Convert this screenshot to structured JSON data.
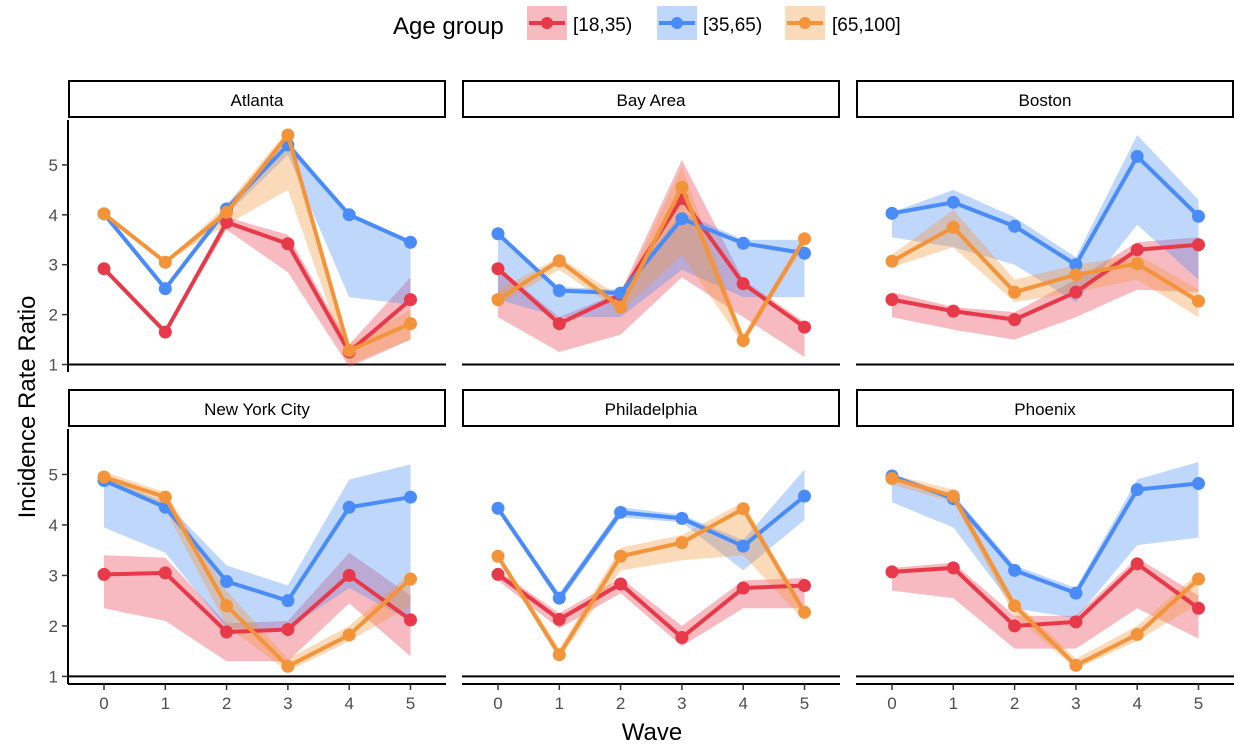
{
  "chart_data": {
    "type": "line",
    "legend": {
      "title": "Age group",
      "placement": "top",
      "entries": [
        "[18,35)",
        "[35,65)",
        "[65,100]"
      ]
    },
    "colors": {
      "[18,35)": "#E8394A",
      "[35,65)": "#4A8CF7",
      "[65,100]": "#F4943A"
    },
    "xlabel": "Wave",
    "ylabel": "Incidence Rate Ratio",
    "x": [
      0,
      1,
      2,
      3,
      4,
      5
    ],
    "x_ticks": [
      "0",
      "1",
      "2",
      "3",
      "4",
      "5"
    ],
    "y_ticks": [
      "1",
      "2",
      "3",
      "4",
      "5"
    ],
    "ylim": [
      0.85,
      5.9
    ],
    "grid": false,
    "panels": [
      {
        "title": "Atlanta",
        "series": [
          {
            "name": "[18,35)",
            "values": [
              2.92,
              1.65,
              3.85,
              3.42,
              1.25,
              2.3
            ],
            "lower": [
              2.92,
              1.65,
              3.7,
              2.85,
              0.95,
              1.5
            ],
            "upper": [
              2.92,
              1.65,
              3.95,
              3.6,
              1.4,
              2.75
            ]
          },
          {
            "name": "[35,65)",
            "values": [
              4.02,
              2.52,
              4.12,
              5.4,
              4.0,
              3.45
            ],
            "lower": [
              4.02,
              2.52,
              4.0,
              5.2,
              2.35,
              2.2
            ],
            "upper": [
              4.02,
              2.52,
              4.2,
              5.5,
              4.0,
              3.45
            ]
          },
          {
            "name": "[65,100]",
            "values": [
              4.02,
              3.05,
              4.05,
              5.6,
              1.28,
              1.82
            ],
            "lower": [
              4.02,
              3.05,
              3.8,
              4.5,
              1.0,
              1.5
            ],
            "upper": [
              4.02,
              3.05,
              4.2,
              5.7,
              1.4,
              2.1
            ]
          }
        ]
      },
      {
        "title": "Bay Area",
        "series": [
          {
            "name": "[18,35)",
            "values": [
              2.92,
              1.82,
              2.4,
              4.33,
              2.62,
              1.75
            ],
            "lower": [
              1.95,
              1.25,
              1.6,
              2.75,
              1.95,
              1.15
            ],
            "upper": [
              2.95,
              1.95,
              2.45,
              5.1,
              2.7,
              1.85
            ]
          },
          {
            "name": "[35,65)",
            "values": [
              3.62,
              2.48,
              2.43,
              3.92,
              3.43,
              3.23
            ],
            "lower": [
              2.3,
              1.95,
              1.95,
              2.9,
              2.35,
              2.35
            ],
            "upper": [
              3.62,
              2.55,
              2.5,
              4.05,
              3.5,
              3.5
            ]
          },
          {
            "name": "[65,100]",
            "values": [
              2.3,
              3.08,
              2.15,
              4.55,
              1.48,
              3.52
            ],
            "lower": [
              2.2,
              2.9,
              2.05,
              3.2,
              1.4,
              3.4
            ],
            "upper": [
              2.5,
              3.15,
              2.35,
              4.95,
              1.6,
              3.6
            ]
          }
        ]
      },
      {
        "title": "Boston",
        "series": [
          {
            "name": "[18,35)",
            "values": [
              2.3,
              2.07,
              1.9,
              2.45,
              3.3,
              3.4
            ],
            "lower": [
              1.95,
              1.7,
              1.5,
              1.95,
              2.5,
              2.45
            ],
            "upper": [
              2.45,
              2.15,
              2.05,
              2.7,
              3.45,
              3.55
            ]
          },
          {
            "name": "[35,65)",
            "values": [
              4.03,
              4.25,
              3.77,
              3.0,
              5.17,
              3.97
            ],
            "lower": [
              3.55,
              3.35,
              3.0,
              2.25,
              3.8,
              2.7
            ],
            "upper": [
              4.05,
              4.5,
              3.95,
              3.15,
              5.6,
              4.3
            ]
          },
          {
            "name": "[65,100]",
            "values": [
              3.07,
              3.75,
              2.45,
              2.8,
              3.02,
              2.27
            ],
            "lower": [
              2.95,
              3.35,
              2.25,
              2.45,
              2.7,
              1.95
            ],
            "upper": [
              3.2,
              4.1,
              2.7,
              3.0,
              3.2,
              2.5
            ]
          }
        ]
      },
      {
        "title": "New York City",
        "series": [
          {
            "name": "[18,35)",
            "values": [
              3.02,
              3.05,
              1.88,
              1.93,
              3.0,
              2.12
            ],
            "lower": [
              2.35,
              2.1,
              1.3,
              1.3,
              2.45,
              1.4
            ],
            "upper": [
              3.4,
              3.35,
              2.05,
              2.1,
              3.45,
              2.6
            ]
          },
          {
            "name": "[35,65)",
            "values": [
              4.88,
              4.35,
              2.88,
              2.5,
              4.35,
              4.55
            ],
            "lower": [
              3.95,
              3.45,
              1.95,
              1.95,
              2.75,
              2.1
            ],
            "upper": [
              4.95,
              4.45,
              3.2,
              2.8,
              4.9,
              5.2
            ]
          },
          {
            "name": "[65,100]",
            "values": [
              4.95,
              4.55,
              2.4,
              1.2,
              1.82,
              2.93
            ],
            "lower": [
              4.85,
              4.3,
              2.0,
              1.1,
              1.7,
              2.4
            ],
            "upper": [
              5.05,
              4.65,
              2.7,
              1.35,
              2.0,
              3.05
            ]
          }
        ]
      },
      {
        "title": "Philadelphia",
        "series": [
          {
            "name": "[18,35)",
            "values": [
              3.02,
              2.13,
              2.83,
              1.77,
              2.75,
              2.8
            ],
            "lower": [
              2.9,
              1.95,
              2.65,
              1.6,
              2.35,
              2.35
            ],
            "upper": [
              3.1,
              2.25,
              2.95,
              2.0,
              2.9,
              2.95
            ]
          },
          {
            "name": "[35,65)",
            "values": [
              4.33,
              2.55,
              4.25,
              4.13,
              3.58,
              4.57
            ],
            "lower": [
              4.33,
              2.45,
              4.15,
              4.05,
              3.1,
              4.1
            ],
            "upper": [
              4.33,
              2.65,
              4.35,
              4.2,
              3.7,
              5.1
            ]
          },
          {
            "name": "[65,100]",
            "values": [
              3.38,
              1.43,
              3.38,
              3.65,
              4.32,
              2.27
            ],
            "lower": [
              3.3,
              1.35,
              3.1,
              3.3,
              3.4,
              2.1
            ],
            "upper": [
              3.45,
              1.55,
              3.55,
              3.8,
              4.45,
              2.35
            ]
          }
        ]
      },
      {
        "title": "Phoenix",
        "series": [
          {
            "name": "[18,35)",
            "values": [
              3.07,
              3.15,
              2.0,
              2.08,
              3.23,
              2.35
            ],
            "lower": [
              2.7,
              2.55,
              1.55,
              1.55,
              2.35,
              1.75
            ],
            "upper": [
              3.15,
              3.25,
              2.2,
              2.2,
              3.35,
              2.6
            ]
          },
          {
            "name": "[35,65)",
            "values": [
              4.97,
              4.52,
              3.1,
              2.65,
              4.7,
              4.82
            ],
            "lower": [
              4.45,
              3.95,
              2.35,
              2.15,
              3.6,
              3.75
            ],
            "upper": [
              5.0,
              4.6,
              3.2,
              2.75,
              4.9,
              5.25
            ]
          },
          {
            "name": "[65,100]",
            "values": [
              4.92,
              4.57,
              2.4,
              1.22,
              1.83,
              2.93
            ],
            "lower": [
              4.8,
              4.45,
              2.2,
              1.15,
              1.7,
              2.45
            ],
            "upper": [
              5.0,
              4.7,
              2.5,
              1.35,
              2.0,
              3.05
            ]
          }
        ]
      }
    ]
  }
}
